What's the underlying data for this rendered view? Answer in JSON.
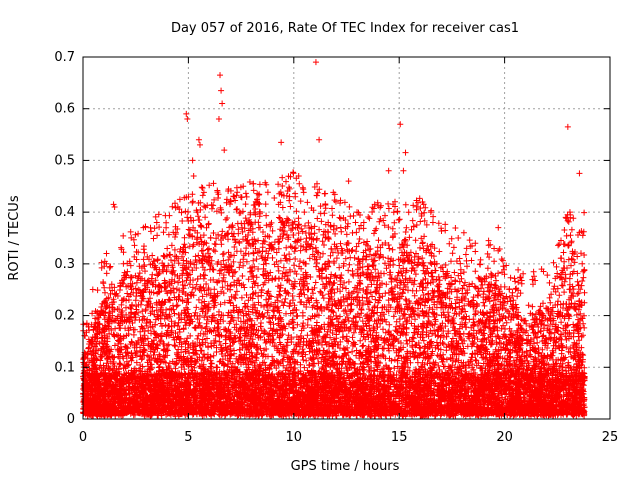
{
  "chart_data": {
    "type": "scatter",
    "title": "Day 057 of 2016, Rate Of TEC Index for receiver cas1",
    "xlabel": "GPS time / hours",
    "ylabel": "ROTI / TECUs",
    "xlim": [
      0,
      25
    ],
    "ylim": [
      0,
      0.7
    ],
    "xticks": [
      "0",
      "5",
      "10",
      "15",
      "20",
      "25"
    ],
    "yticks": [
      "0",
      "0.1",
      "0.2",
      "0.3",
      "0.4",
      "0.5",
      "0.6",
      "0.7"
    ],
    "grid": true,
    "marker": "+",
    "color": "#ff0000",
    "series": [
      {
        "name": "ROTI",
        "description": "Dense cloud of ROTI samples from 0 to ~23.8 h; bulk 0.02–0.3 TECU/min, outliers to ~0.69",
        "x": [
          4.9,
          4.95,
          5.5,
          5.55,
          6.5,
          6.55,
          6.6,
          6.45,
          6.7,
          9.4,
          11.05,
          11.2,
          15.05,
          15.3,
          15.2,
          23.0,
          23.55,
          23.1,
          7.6,
          5.2,
          5.25,
          1.45,
          1.5,
          12.6,
          14.5,
          14.8,
          16.5,
          16.6,
          19.7,
          17.8,
          18.2,
          21.0,
          21.2,
          22.9,
          3.5,
          4.5,
          8.2,
          8.4,
          9.8,
          10.5,
          12.0,
          13.0
        ],
        "y": [
          0.59,
          0.58,
          0.54,
          0.53,
          0.665,
          0.635,
          0.61,
          0.58,
          0.52,
          0.535,
          0.69,
          0.54,
          0.57,
          0.515,
          0.48,
          0.565,
          0.475,
          0.4,
          0.45,
          0.5,
          0.47,
          0.415,
          0.41,
          0.46,
          0.48,
          0.42,
          0.4,
          0.38,
          0.37,
          0.35,
          0.33,
          0.19,
          0.18,
          0.39,
          0.38,
          0.41,
          0.42,
          0.4,
          0.43,
          0.4,
          0.42,
          0.4
        ]
      }
    ],
    "density": {
      "x_start": 0,
      "x_end": 23.8,
      "comment": "Per-hour typical maximum of the dense cluster (TECU/min)",
      "hour_envelope": [
        0.12,
        0.24,
        0.28,
        0.3,
        0.33,
        0.36,
        0.38,
        0.37,
        0.38,
        0.38,
        0.4,
        0.38,
        0.36,
        0.32,
        0.34,
        0.34,
        0.36,
        0.3,
        0.29,
        0.28,
        0.24,
        0.2,
        0.22,
        0.32
      ],
      "baseline_min": 0.01,
      "baseline_typ": 0.05
    }
  }
}
